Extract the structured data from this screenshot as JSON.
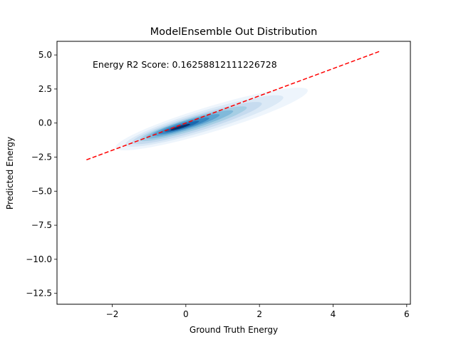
{
  "chart_data": {
    "type": "density",
    "title": "ModelEnsemble Out Distribution",
    "xlabel": "Ground Truth Energy",
    "ylabel": "Predicted Energy",
    "xlim": [
      -3.5,
      6.1
    ],
    "ylim": [
      -13.3,
      6.0
    ],
    "x_ticks": [
      -2,
      0,
      2,
      4,
      6
    ],
    "x_tick_labels": [
      "−2",
      "0",
      "2",
      "4",
      "6"
    ],
    "y_ticks": [
      5.0,
      2.5,
      0.0,
      -2.5,
      -5.0,
      -7.5,
      -10.0,
      -12.5
    ],
    "y_tick_labels": [
      "5.0",
      "2.5",
      "0.0",
      "−2.5",
      "−5.0",
      "−7.5",
      "−10.0",
      "−12.5"
    ],
    "grid": false,
    "annotation": "Energy R2 Score: 0.16258812111226728",
    "reference_line": {
      "x": [
        -2.7,
        5.25
      ],
      "y": [
        -2.7,
        5.25
      ],
      "color": "#ff0000",
      "style": "dashed"
    },
    "density": {
      "colormap": "Blues",
      "levels": [
        {
          "cx": 0.7,
          "cy": 0.3,
          "a": 3.4,
          "b": 0.75,
          "angle_deg": 41
        },
        {
          "cx": 0.5,
          "cy": 0.15,
          "a": 2.8,
          "b": 0.6,
          "angle_deg": 41
        },
        {
          "cx": 0.3,
          "cy": 0.0,
          "a": 2.3,
          "b": 0.48,
          "angle_deg": 41
        },
        {
          "cx": 0.2,
          "cy": -0.05,
          "a": 1.9,
          "b": 0.38,
          "angle_deg": 41
        },
        {
          "cx": 0.1,
          "cy": -0.1,
          "a": 1.55,
          "b": 0.3,
          "angle_deg": 41
        },
        {
          "cx": 0.0,
          "cy": -0.15,
          "a": 1.2,
          "b": 0.24,
          "angle_deg": 41
        },
        {
          "cx": -0.05,
          "cy": -0.2,
          "a": 0.9,
          "b": 0.18,
          "angle_deg": 41
        },
        {
          "cx": -0.1,
          "cy": -0.25,
          "a": 0.6,
          "b": 0.12,
          "angle_deg": 41
        },
        {
          "cx": -0.15,
          "cy": -0.3,
          "a": 0.35,
          "b": 0.07,
          "angle_deg": 41
        }
      ],
      "fill_colors": [
        "#eef5fc",
        "#dbe9f6",
        "#c6dbef",
        "#a6cee4",
        "#80b9da",
        "#5aa1cf",
        "#3787c0",
        "#1a68ae",
        "#08306b"
      ]
    }
  }
}
